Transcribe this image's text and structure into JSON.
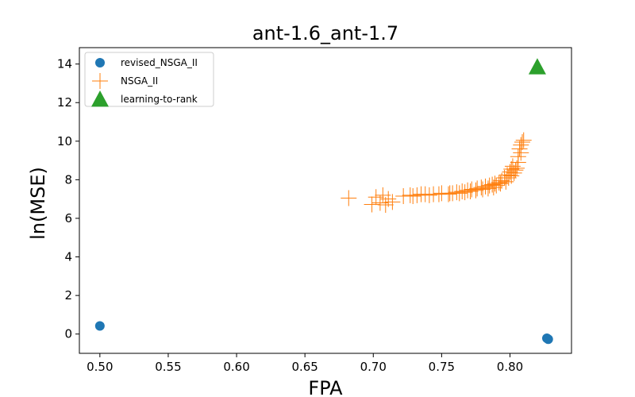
{
  "chart_data": {
    "type": "scatter",
    "title": "ant-1.6_ant-1.7",
    "xlabel": "FPA",
    "ylabel": "ln(MSE)",
    "xlim": [
      0.485,
      0.845
    ],
    "ylim": [
      -1.0,
      14.85
    ],
    "xticks": [
      0.5,
      0.55,
      0.6,
      0.65,
      0.7,
      0.75,
      0.8
    ],
    "xtick_labels": [
      "0.50",
      "0.55",
      "0.60",
      "0.65",
      "0.70",
      "0.75",
      "0.80"
    ],
    "yticks": [
      0,
      2,
      4,
      6,
      8,
      10,
      12,
      14
    ],
    "ytick_labels": [
      "0",
      "2",
      "4",
      "6",
      "8",
      "10",
      "12",
      "14"
    ],
    "grid": false,
    "legend_position": "top-left",
    "series": [
      {
        "name": "revised_NSGA_II",
        "marker": "circle",
        "color": "#1f77b4",
        "points": [
          [
            0.5,
            0.42
          ],
          [
            0.827,
            -0.22
          ],
          [
            0.828,
            -0.27
          ]
        ]
      },
      {
        "name": "NSGA_II",
        "marker": "plus",
        "color": "#ff7f0e",
        "points": [
          [
            0.682,
            7.05
          ],
          [
            0.699,
            6.72
          ],
          [
            0.702,
            7.1
          ],
          [
            0.705,
            6.8
          ],
          [
            0.707,
            7.2
          ],
          [
            0.709,
            6.7
          ],
          [
            0.711,
            7.0
          ],
          [
            0.714,
            6.85
          ],
          [
            0.722,
            7.15
          ],
          [
            0.727,
            7.2
          ],
          [
            0.732,
            7.2
          ],
          [
            0.738,
            7.25
          ],
          [
            0.744,
            7.25
          ],
          [
            0.75,
            7.3
          ],
          [
            0.755,
            7.25
          ],
          [
            0.758,
            7.3
          ],
          [
            0.761,
            7.35
          ],
          [
            0.765,
            7.4
          ],
          [
            0.769,
            7.45
          ],
          [
            0.772,
            7.5
          ],
          [
            0.776,
            7.55
          ],
          [
            0.779,
            7.6
          ],
          [
            0.782,
            7.65
          ],
          [
            0.785,
            7.7
          ],
          [
            0.787,
            7.75
          ],
          [
            0.789,
            7.8
          ],
          [
            0.792,
            7.85
          ],
          [
            0.794,
            7.95
          ],
          [
            0.796,
            8.1
          ],
          [
            0.798,
            8.25
          ],
          [
            0.799,
            8.1
          ],
          [
            0.8,
            8.4
          ],
          [
            0.801,
            8.55
          ],
          [
            0.802,
            8.7
          ],
          [
            0.803,
            8.35
          ],
          [
            0.804,
            8.5
          ],
          [
            0.805,
            8.6
          ],
          [
            0.806,
            9.2
          ],
          [
            0.807,
            9.6
          ],
          [
            0.808,
            9.8
          ],
          [
            0.809,
            9.95
          ],
          [
            0.81,
            10.05
          ],
          [
            0.806,
            8.9
          ],
          [
            0.808,
            9.4
          ],
          [
            0.801,
            8.2
          ],
          [
            0.797,
            7.9
          ],
          [
            0.793,
            7.8
          ],
          [
            0.79,
            7.7
          ],
          [
            0.788,
            7.6
          ],
          [
            0.784,
            7.55
          ],
          [
            0.78,
            7.5
          ],
          [
            0.775,
            7.45
          ],
          [
            0.771,
            7.4
          ],
          [
            0.767,
            7.35
          ],
          [
            0.763,
            7.3
          ],
          [
            0.756,
            7.3
          ],
          [
            0.748,
            7.25
          ],
          [
            0.741,
            7.2
          ],
          [
            0.735,
            7.25
          ],
          [
            0.729,
            7.15
          ]
        ]
      },
      {
        "name": "learning-to-rank",
        "marker": "triangle",
        "color": "#2ca02c",
        "points": [
          [
            0.82,
            13.85
          ]
        ]
      }
    ]
  }
}
